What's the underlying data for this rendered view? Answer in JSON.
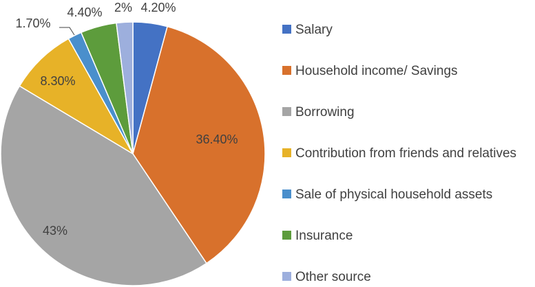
{
  "chart_data": {
    "type": "pie",
    "categories": [
      "Salary",
      "Household income/ Savings",
      "Borrowing",
      "Contribution from friends and relatives",
      "Sale of physical household assets",
      "Insurance",
      "Other source"
    ],
    "values": [
      4.2,
      36.4,
      43,
      8.3,
      1.7,
      4.4,
      2
    ],
    "labels": [
      "4.20%",
      "36.40%",
      "43%",
      "8.30%",
      "1.70%",
      "4.40%",
      "2%"
    ],
    "colors": [
      "#4472C4",
      "#D8712C",
      "#A5A5A5",
      "#E7B228",
      "#4A8FCC",
      "#5D9C3C",
      "#9DAFDD"
    ],
    "start_angle_deg": 0,
    "direction": "clockwise",
    "legend_position": "right"
  }
}
